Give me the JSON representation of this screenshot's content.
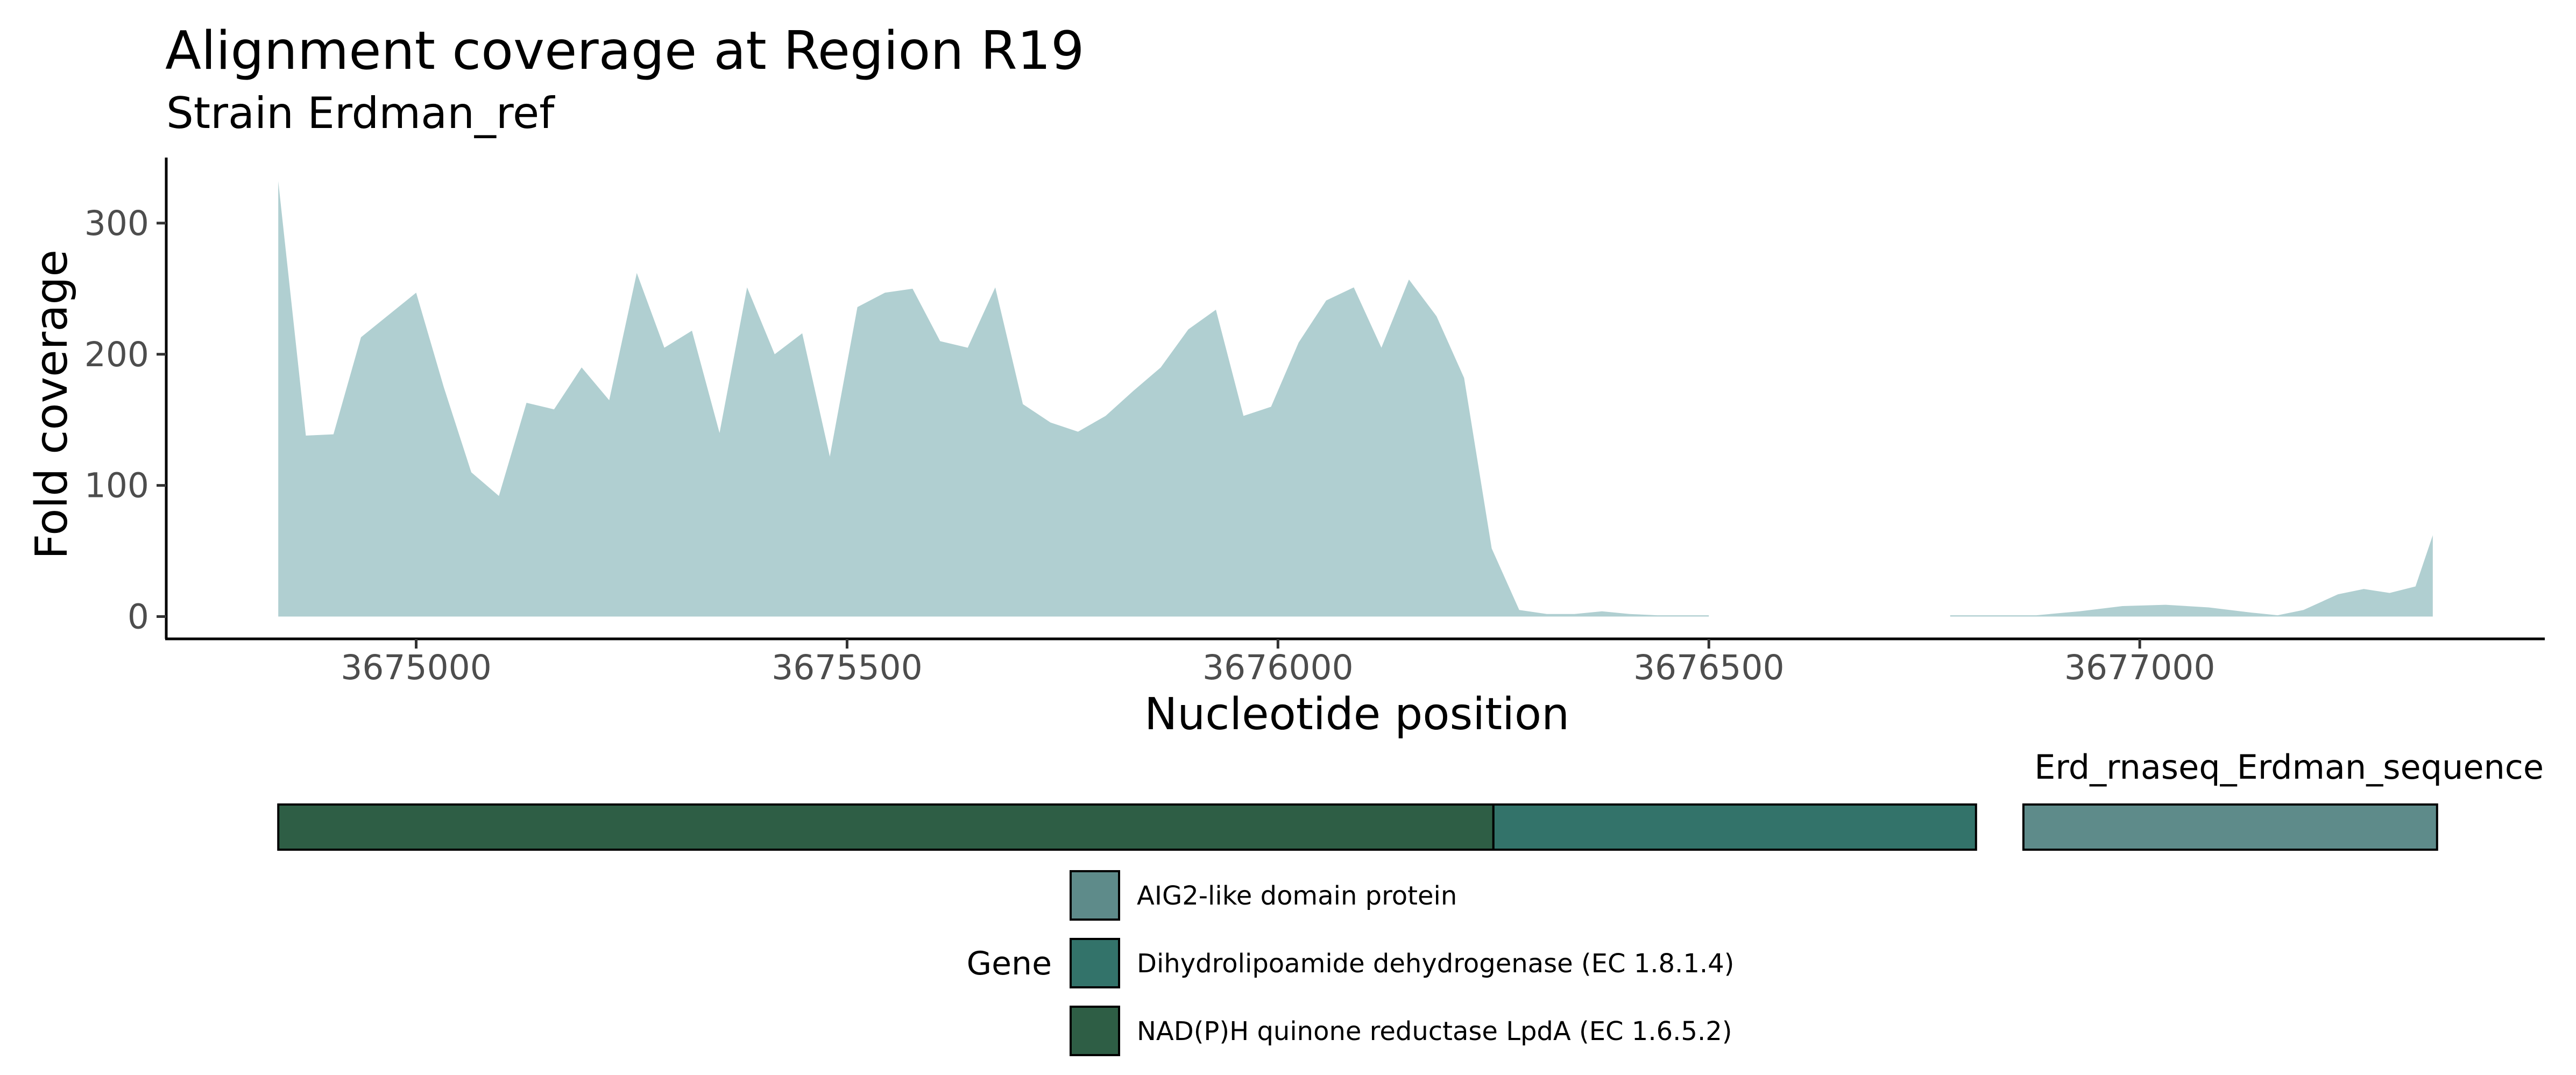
{
  "chart_data": {
    "type": "area",
    "title": "Alignment coverage at Region R19",
    "subtitle": "Strain Erdman_ref",
    "xlabel": "Nucleotide position",
    "ylabel": "Fold coverage",
    "xlim": [
      3674710,
      3677470
    ],
    "ylim": [
      -17,
      350
    ],
    "x_ticks": [
      3675000,
      3675500,
      3676000,
      3676500,
      3677000
    ],
    "x_tick_labels": [
      "3675000",
      "3675500",
      "3676000",
      "3676500",
      "3677000"
    ],
    "y_ticks": [
      0,
      100,
      200,
      300
    ],
    "y_tick_labels": [
      "0",
      "100",
      "200",
      "300"
    ],
    "grid": false,
    "fill_color": "#b0cfd1",
    "coverage_segments": [
      {
        "x": [
          3674840,
          3674872,
          3674904,
          3674936,
          3674968,
          3675000,
          3675032,
          3675064,
          3675096,
          3675128,
          3675160,
          3675192,
          3675224,
          3675256,
          3675288,
          3675320,
          3675352,
          3675384,
          3675416,
          3675448,
          3675480,
          3675512,
          3675544,
          3675576,
          3675608,
          3675640,
          3675672,
          3675704,
          3675736,
          3675768,
          3675800,
          3675832,
          3675864,
          3675896,
          3675928,
          3675960,
          3675992,
          3676024,
          3676056,
          3676088,
          3676120,
          3676152,
          3676184,
          3676216,
          3676248,
          3676280,
          3676312,
          3676344,
          3676376,
          3676408,
          3676440,
          3676472,
          3676500
        ],
        "y": [
          332,
          138,
          139,
          213,
          230,
          247,
          175,
          110,
          92,
          163,
          158,
          190,
          165,
          262,
          205,
          218,
          140,
          251,
          200,
          216,
          122,
          236,
          247,
          250,
          210,
          205,
          251,
          162,
          148,
          141,
          153,
          172,
          190,
          219,
          234,
          153,
          160,
          209,
          241,
          251,
          205,
          257,
          229,
          182,
          52,
          5,
          2,
          2,
          4,
          2,
          1,
          1,
          1
        ]
      },
      {
        "x": [
          3676780,
          3676830,
          3676880,
          3676930,
          3676980,
          3677030,
          3677080,
          3677130,
          3677160,
          3677190,
          3677230,
          3677260,
          3677290,
          3677320,
          3677340
        ],
        "y": [
          1,
          1,
          1,
          4,
          8,
          9,
          7,
          3,
          1,
          5,
          17,
          21,
          18,
          23,
          62
        ]
      }
    ],
    "gene_track": {
      "label": "Erd_rnaseq_Erdman_sequence",
      "genes": [
        {
          "start": 3674840,
          "end": 3676250,
          "color": "#2e5e45",
          "gene": "NAD(P)H quinone reductase LpdA (EC 1.6.5.2)"
        },
        {
          "start": 3676250,
          "end": 3676810,
          "color": "#33736a",
          "gene": "Dihydrolipoamide dehydrogenase (EC 1.8.1.4)"
        },
        {
          "start": 3676865,
          "end": 3677345,
          "color": "#5e8b8a",
          "gene": "AIG2-like domain protein"
        }
      ]
    },
    "legend": {
      "title": "Gene",
      "position": "bottom",
      "entries": [
        {
          "label": "AIG2-like domain protein",
          "color": "#5e8b8a"
        },
        {
          "label": "Dihydrolipoamide dehydrogenase (EC 1.8.1.4)",
          "color": "#33736a"
        },
        {
          "label": "NAD(P)H quinone reductase LpdA (EC 1.6.5.2)",
          "color": "#2e5e45"
        }
      ]
    }
  }
}
